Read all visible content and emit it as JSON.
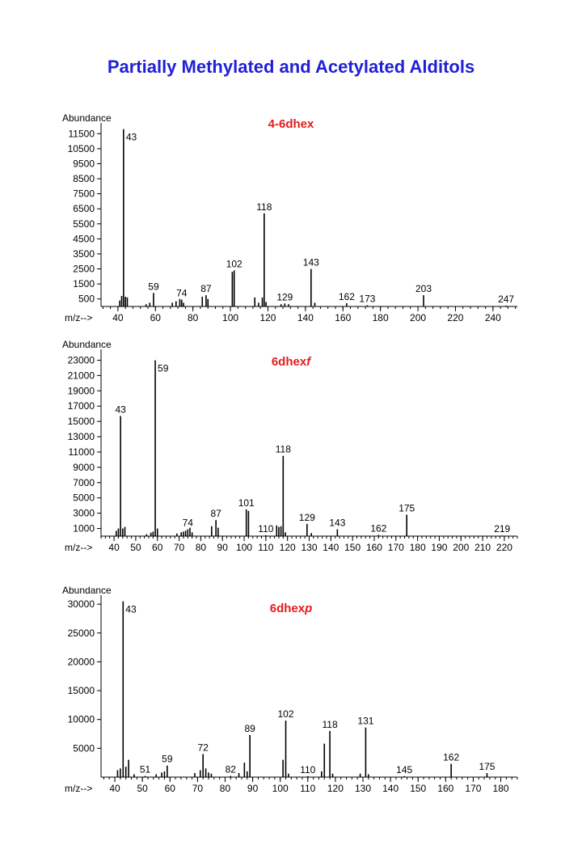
{
  "title": "Partially Methylated and Acetylated Alditols",
  "chart_data": [
    {
      "type": "bar",
      "title": "4-6dhex",
      "ylabel": "Abundance",
      "xlabel": "m/z-->",
      "xlim": [
        31,
        253
      ],
      "ylim": [
        0,
        12000
      ],
      "xticks": [
        40,
        60,
        80,
        100,
        120,
        140,
        160,
        180,
        200,
        220,
        240
      ],
      "yticks": [
        500,
        1500,
        2500,
        3500,
        4500,
        5500,
        6500,
        7500,
        8500,
        9500,
        10500,
        11500
      ],
      "peaks": [
        {
          "mz": 41,
          "y": 400
        },
        {
          "mz": 42,
          "y": 700
        },
        {
          "mz": 43,
          "y": 11800,
          "label": "43"
        },
        {
          "mz": 44,
          "y": 650
        },
        {
          "mz": 45,
          "y": 600
        },
        {
          "mz": 55,
          "y": 150
        },
        {
          "mz": 57,
          "y": 250
        },
        {
          "mz": 59,
          "y": 900,
          "label": "59"
        },
        {
          "mz": 69,
          "y": 250
        },
        {
          "mz": 71,
          "y": 350
        },
        {
          "mz": 73,
          "y": 500
        },
        {
          "mz": 74,
          "y": 450,
          "label": "74"
        },
        {
          "mz": 75,
          "y": 250
        },
        {
          "mz": 85,
          "y": 650
        },
        {
          "mz": 87,
          "y": 750,
          "label": "87"
        },
        {
          "mz": 88,
          "y": 500
        },
        {
          "mz": 101,
          "y": 2300
        },
        {
          "mz": 102,
          "y": 2400,
          "label": "102"
        },
        {
          "mz": 113,
          "y": 600
        },
        {
          "mz": 115,
          "y": 250
        },
        {
          "mz": 117,
          "y": 600
        },
        {
          "mz": 118,
          "y": 6200,
          "label": "118"
        },
        {
          "mz": 119,
          "y": 300
        },
        {
          "mz": 127,
          "y": 150
        },
        {
          "mz": 129,
          "y": 200,
          "label": "129"
        },
        {
          "mz": 131,
          "y": 150
        },
        {
          "mz": 143,
          "y": 2500,
          "label": "143"
        },
        {
          "mz": 145,
          "y": 250
        },
        {
          "mz": 162,
          "y": 220,
          "label": "162"
        },
        {
          "mz": 173,
          "y": 80,
          "label": "173"
        },
        {
          "mz": 203,
          "y": 750,
          "label": "203"
        },
        {
          "mz": 247,
          "y": 60,
          "label": "247"
        }
      ]
    },
    {
      "type": "bar",
      "title": "6dhexf",
      "ylabel": "Abundance",
      "xlabel": "m/z-->",
      "xlim": [
        34,
        226
      ],
      "ylim": [
        0,
        24000
      ],
      "xticks": [
        40,
        50,
        60,
        70,
        80,
        90,
        100,
        110,
        120,
        130,
        140,
        150,
        160,
        170,
        180,
        190,
        200,
        210,
        220
      ],
      "yticks": [
        1000,
        3000,
        5000,
        7000,
        9000,
        11000,
        13000,
        15000,
        17000,
        19000,
        21000,
        23000
      ],
      "peaks": [
        {
          "mz": 41,
          "y": 700
        },
        {
          "mz": 42,
          "y": 1000
        },
        {
          "mz": 43,
          "y": 15700,
          "label": "43"
        },
        {
          "mz": 44,
          "y": 1000
        },
        {
          "mz": 45,
          "y": 1200
        },
        {
          "mz": 55,
          "y": 250
        },
        {
          "mz": 57,
          "y": 450
        },
        {
          "mz": 58,
          "y": 600
        },
        {
          "mz": 59,
          "y": 23000,
          "label": "59"
        },
        {
          "mz": 60,
          "y": 1000
        },
        {
          "mz": 69,
          "y": 350
        },
        {
          "mz": 71,
          "y": 500
        },
        {
          "mz": 72,
          "y": 600
        },
        {
          "mz": 73,
          "y": 700
        },
        {
          "mz": 74,
          "y": 900,
          "label": "74"
        },
        {
          "mz": 75,
          "y": 1100
        },
        {
          "mz": 76,
          "y": 500
        },
        {
          "mz": 85,
          "y": 1300
        },
        {
          "mz": 87,
          "y": 2100,
          "label": "87"
        },
        {
          "mz": 88,
          "y": 1100
        },
        {
          "mz": 101,
          "y": 3500,
          "label": "101"
        },
        {
          "mz": 102,
          "y": 3300
        },
        {
          "mz": 110,
          "y": 120,
          "label": "110"
        },
        {
          "mz": 115,
          "y": 1400
        },
        {
          "mz": 116,
          "y": 1200
        },
        {
          "mz": 117,
          "y": 1300
        },
        {
          "mz": 118,
          "y": 10500,
          "label": "118"
        },
        {
          "mz": 119,
          "y": 500
        },
        {
          "mz": 129,
          "y": 1600,
          "label": "129"
        },
        {
          "mz": 131,
          "y": 400
        },
        {
          "mz": 143,
          "y": 900,
          "label": "143"
        },
        {
          "mz": 162,
          "y": 150,
          "label": "162"
        },
        {
          "mz": 175,
          "y": 2800,
          "label": "175"
        },
        {
          "mz": 219,
          "y": 80,
          "label": "219"
        }
      ]
    },
    {
      "type": "bar",
      "title": "6dhexp",
      "ylabel": "Abundance",
      "xlabel": "m/z-->",
      "xlim": [
        35,
        186
      ],
      "ylim": [
        0,
        31000
      ],
      "xticks": [
        40,
        50,
        60,
        70,
        80,
        90,
        100,
        110,
        120,
        130,
        140,
        150,
        160,
        170,
        180
      ],
      "yticks": [
        5000,
        10000,
        15000,
        20000,
        25000,
        30000
      ],
      "peaks": [
        {
          "mz": 41,
          "y": 1200
        },
        {
          "mz": 42,
          "y": 1500
        },
        {
          "mz": 43,
          "y": 30500,
          "label": "43"
        },
        {
          "mz": 44,
          "y": 1800
        },
        {
          "mz": 45,
          "y": 3000
        },
        {
          "mz": 47,
          "y": 500
        },
        {
          "mz": 51,
          "y": 200,
          "label": "51"
        },
        {
          "mz": 55,
          "y": 500
        },
        {
          "mz": 57,
          "y": 800
        },
        {
          "mz": 58,
          "y": 1000
        },
        {
          "mz": 59,
          "y": 2000,
          "label": "59"
        },
        {
          "mz": 69,
          "y": 700
        },
        {
          "mz": 71,
          "y": 1200
        },
        {
          "mz": 72,
          "y": 4000,
          "label": "72"
        },
        {
          "mz": 73,
          "y": 1500
        },
        {
          "mz": 74,
          "y": 800
        },
        {
          "mz": 75,
          "y": 600
        },
        {
          "mz": 82,
          "y": 200,
          "label": "82"
        },
        {
          "mz": 85,
          "y": 700
        },
        {
          "mz": 87,
          "y": 2500
        },
        {
          "mz": 88,
          "y": 1000
        },
        {
          "mz": 89,
          "y": 7300,
          "label": "89"
        },
        {
          "mz": 101,
          "y": 3000
        },
        {
          "mz": 102,
          "y": 9800,
          "label": "102"
        },
        {
          "mz": 103,
          "y": 600
        },
        {
          "mz": 110,
          "y": 150,
          "label": "110"
        },
        {
          "mz": 115,
          "y": 1000
        },
        {
          "mz": 116,
          "y": 5800
        },
        {
          "mz": 118,
          "y": 8000,
          "label": "118"
        },
        {
          "mz": 119,
          "y": 600
        },
        {
          "mz": 129,
          "y": 600
        },
        {
          "mz": 131,
          "y": 8600,
          "label": "131"
        },
        {
          "mz": 132,
          "y": 500
        },
        {
          "mz": 145,
          "y": 150,
          "label": "145"
        },
        {
          "mz": 162,
          "y": 2300,
          "label": "162"
        },
        {
          "mz": 175,
          "y": 700,
          "label": "175"
        }
      ]
    }
  ]
}
